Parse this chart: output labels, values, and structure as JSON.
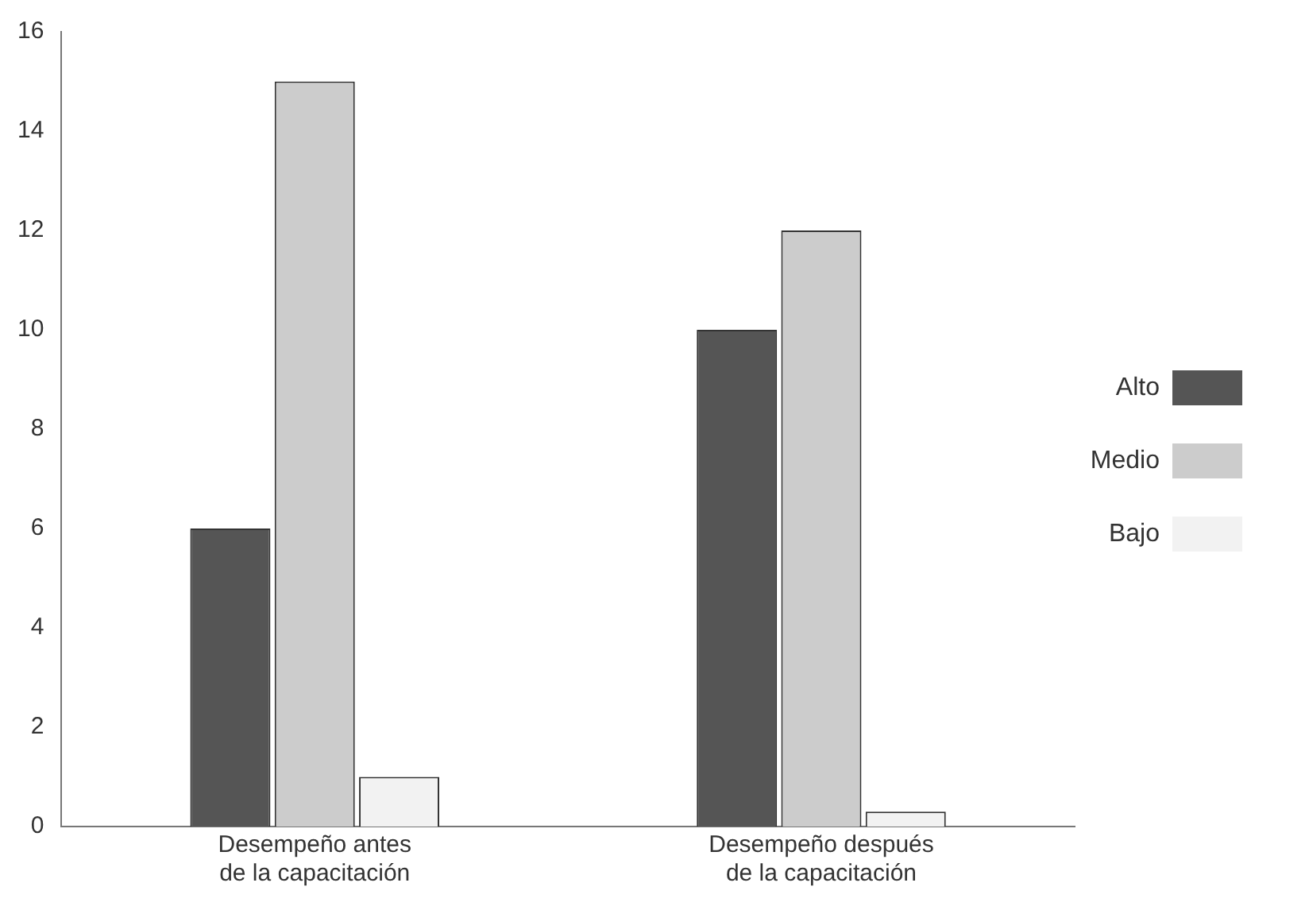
{
  "chart_data": {
    "type": "bar",
    "categories": [
      "Desempeño antes de la capacitación",
      "Desempeño después de la capacitación"
    ],
    "series": [
      {
        "name": "Alto",
        "color": "#555555",
        "values": [
          6,
          10
        ]
      },
      {
        "name": "Medio",
        "color": "#cccccc",
        "values": [
          15,
          12
        ]
      },
      {
        "name": "Bajo",
        "color": "#f2f2f2",
        "values": [
          1,
          0.3
        ]
      }
    ],
    "ylim": [
      0,
      16
    ],
    "yticks": [
      0,
      2,
      4,
      6,
      8,
      10,
      12,
      14,
      16
    ],
    "grid": false,
    "legend": "right"
  }
}
